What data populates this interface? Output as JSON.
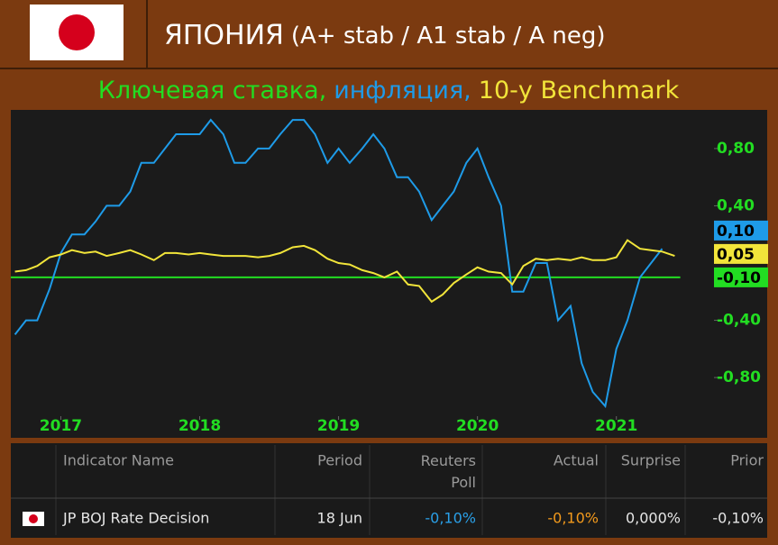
{
  "header": {
    "title": "ЯПОНИЯ",
    "ratings": "(A+ stab / A1 stab / A neg)"
  },
  "chart_data": {
    "type": "line",
    "subtitle": [
      "Ключевая ставка,",
      "инфляция,",
      "10-y Benchmark"
    ],
    "series": [
      {
        "name": "Ключевая ставка,",
        "color": "#22dd22",
        "x": [
          2016.64,
          2021.46
        ],
        "values": [
          -0.1,
          -0.1
        ],
        "value_labels": [
          null,
          "-0,10"
        ]
      },
      {
        "name": "инфляция,",
        "color": "#1e9be8",
        "x": [
          2016.67,
          2016.75,
          2016.83,
          2016.92,
          2017.0,
          2017.08,
          2017.17,
          2017.25,
          2017.33,
          2017.42,
          2017.5,
          2017.58,
          2017.67,
          2017.75,
          2017.83,
          2017.92,
          2018.0,
          2018.08,
          2018.17,
          2018.25,
          2018.33,
          2018.42,
          2018.5,
          2018.58,
          2018.67,
          2018.75,
          2018.83,
          2018.92,
          2019.0,
          2019.08,
          2019.17,
          2019.25,
          2019.33,
          2019.42,
          2019.5,
          2019.58,
          2019.67,
          2019.75,
          2019.83,
          2019.92,
          2020.0,
          2020.08,
          2020.17,
          2020.25,
          2020.33,
          2020.42,
          2020.5,
          2020.58,
          2020.67,
          2020.75,
          2020.83,
          2020.92,
          2021.0,
          2021.08,
          2021.17,
          2021.33
        ],
        "values": [
          -0.5,
          -0.4,
          -0.4,
          -0.18,
          0.07,
          0.2,
          0.2,
          0.29,
          0.4,
          0.4,
          0.5,
          0.7,
          0.7,
          0.8,
          0.9,
          0.9,
          0.9,
          1.0,
          0.9,
          0.7,
          0.7,
          0.8,
          0.8,
          0.9,
          1.0,
          1.0,
          0.9,
          0.7,
          0.8,
          0.7,
          0.8,
          0.9,
          0.8,
          0.6,
          0.6,
          0.5,
          0.3,
          0.4,
          0.5,
          0.7,
          0.8,
          0.6,
          0.4,
          -0.2,
          -0.2,
          0.0,
          0.0,
          -0.4,
          -0.3,
          -0.7,
          -0.9,
          -1.0,
          -0.6,
          -0.4,
          -0.1,
          0.1
        ],
        "value_labels": [
          null,
          null,
          null,
          null,
          null,
          null,
          null,
          null,
          null,
          null,
          null,
          null,
          null,
          null,
          null,
          null,
          null,
          null,
          null,
          null,
          null,
          null,
          null,
          null,
          null,
          null,
          null,
          null,
          null,
          null,
          null,
          null,
          null,
          null,
          null,
          null,
          null,
          null,
          null,
          null,
          null,
          null,
          null,
          null,
          null,
          null,
          null,
          null,
          null,
          null,
          null,
          null,
          null,
          null,
          null,
          "0,10"
        ]
      },
      {
        "name": "10-y Benchmark",
        "color": "#f2e53a",
        "x": [
          2016.67,
          2016.75,
          2016.83,
          2016.92,
          2017.0,
          2017.08,
          2017.17,
          2017.25,
          2017.33,
          2017.42,
          2017.5,
          2017.58,
          2017.67,
          2017.75,
          2017.83,
          2017.92,
          2018.0,
          2018.08,
          2018.17,
          2018.25,
          2018.33,
          2018.42,
          2018.5,
          2018.58,
          2018.67,
          2018.75,
          2018.83,
          2018.92,
          2019.0,
          2019.08,
          2019.17,
          2019.25,
          2019.33,
          2019.42,
          2019.5,
          2019.58,
          2019.67,
          2019.75,
          2019.83,
          2019.92,
          2020.0,
          2020.08,
          2020.17,
          2020.25,
          2020.33,
          2020.42,
          2020.5,
          2020.58,
          2020.67,
          2020.75,
          2020.83,
          2020.92,
          2021.0,
          2021.08,
          2021.17,
          2021.25,
          2021.33,
          2021.42
        ],
        "values": [
          -0.06,
          -0.05,
          -0.02,
          0.04,
          0.06,
          0.09,
          0.07,
          0.08,
          0.05,
          0.07,
          0.09,
          0.06,
          0.02,
          0.07,
          0.07,
          0.06,
          0.07,
          0.06,
          0.05,
          0.05,
          0.05,
          0.04,
          0.05,
          0.07,
          0.11,
          0.12,
          0.09,
          0.03,
          0.0,
          -0.01,
          -0.05,
          -0.07,
          -0.1,
          -0.06,
          -0.15,
          -0.16,
          -0.27,
          -0.22,
          -0.14,
          -0.08,
          -0.03,
          -0.06,
          -0.07,
          -0.15,
          -0.02,
          0.03,
          0.02,
          0.03,
          0.02,
          0.04,
          0.02,
          0.02,
          0.04,
          0.16,
          0.1,
          0.09,
          0.08,
          0.05
        ],
        "value_labels": [
          null,
          null,
          null,
          null,
          null,
          null,
          null,
          null,
          null,
          null,
          null,
          null,
          null,
          null,
          null,
          null,
          null,
          null,
          null,
          null,
          null,
          null,
          null,
          null,
          null,
          null,
          null,
          null,
          null,
          null,
          null,
          null,
          null,
          null,
          null,
          null,
          null,
          null,
          null,
          null,
          null,
          null,
          null,
          null,
          null,
          null,
          null,
          null,
          null,
          null,
          null,
          null,
          null,
          null,
          null,
          null,
          null,
          "0,05"
        ]
      }
    ],
    "xlim": [
      2016.64,
      2021.69
    ],
    "xticks": [
      2017,
      2018,
      2019,
      2020,
      2021
    ],
    "ylim": [
      -1.07,
      1.07
    ],
    "yticks": [
      {
        "value": 0.8,
        "label": "0,80"
      },
      {
        "value": 0.4,
        "label": "0,40"
      },
      {
        "value": -0.4,
        "label": "-0,40"
      },
      {
        "value": -0.8,
        "label": "-0,80"
      }
    ]
  },
  "table": {
    "header": [
      "Indicator Name",
      "Period",
      "Reuters Poll",
      "Actual",
      "Surprise",
      "Prior"
    ],
    "rows": [
      [
        "JP BOJ Rate Decision",
        "18 Jun",
        "-0,10%",
        "-0,10%",
        "0,000%",
        "-0,10%"
      ]
    ]
  }
}
